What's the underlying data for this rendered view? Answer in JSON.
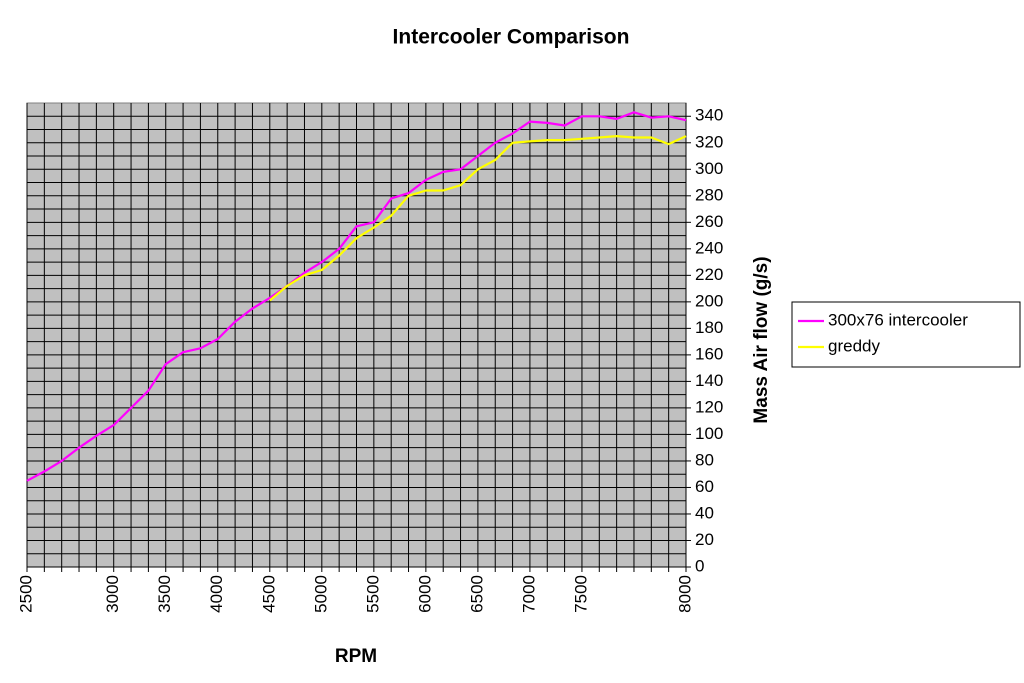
{
  "chart_data": {
    "type": "line",
    "title": "Intercooler Comparison",
    "x_label": "RPM",
    "y_label": "Mass Air flow (g/s)",
    "categories": [
      "2500",
      null,
      null,
      null,
      null,
      "3000",
      null,
      null,
      "3500",
      null,
      null,
      "4000",
      null,
      null,
      "4500",
      null,
      null,
      "5000",
      null,
      null,
      "5500",
      null,
      null,
      "6000",
      null,
      null,
      "6500",
      null,
      null,
      "7000",
      null,
      null,
      "7500",
      null,
      null,
      null,
      null,
      null,
      "8000"
    ],
    "series": [
      {
        "name": "300x76 intercooler",
        "color": "#ff00ff",
        "values": [
          65,
          72,
          80,
          90,
          99,
          107,
          120,
          133,
          153,
          162,
          165,
          172,
          185,
          195,
          203,
          212,
          222,
          230,
          240,
          257,
          260,
          278,
          282,
          292,
          298,
          300,
          310,
          320,
          327,
          336,
          335,
          333,
          340,
          340,
          338,
          343,
          339,
          340,
          337
        ]
      },
      {
        "name": "greddy",
        "color": "#ffff00",
        "values": [
          null,
          null,
          null,
          null,
          null,
          null,
          null,
          null,
          null,
          null,
          null,
          null,
          null,
          null,
          201,
          212,
          220,
          224,
          235,
          248,
          256,
          265,
          280,
          284,
          284,
          288,
          300,
          307,
          320,
          321,
          322,
          322,
          323,
          324,
          325,
          324,
          324,
          319,
          325
        ]
      }
    ],
    "ylim": [
      0,
      350
    ],
    "yticks": [
      0,
      20,
      40,
      60,
      80,
      100,
      120,
      140,
      160,
      180,
      200,
      220,
      240,
      260,
      280,
      300,
      320,
      340
    ],
    "grid": true,
    "minor_grid": true,
    "y_axis_side": "right",
    "legend": "right",
    "plot_background": "#c0c0c0"
  }
}
